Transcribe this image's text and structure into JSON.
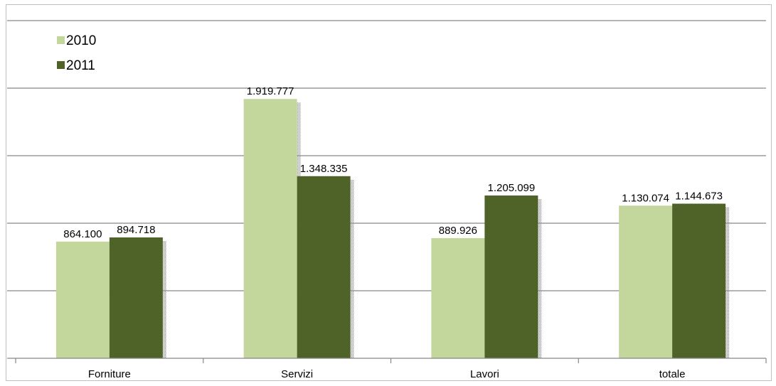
{
  "chart_data": {
    "type": "bar",
    "title": "",
    "xlabel": "",
    "ylabel": "",
    "categories": [
      "Forniture",
      "Servizi",
      "Lavori",
      "totale"
    ],
    "series": [
      {
        "name": "2010",
        "values": [
          864100,
          1919777,
          889926,
          1130074
        ],
        "labels": [
          "864.100",
          "1.919.777",
          "889.926",
          "1.130.074"
        ],
        "color": "#c3d69b"
      },
      {
        "name": "2011",
        "values": [
          894718,
          1348335,
          1205099,
          1144673
        ],
        "labels": [
          "894.718",
          "1.348.335",
          "1.205.099",
          "1.144.673"
        ],
        "color": "#4f6228"
      }
    ],
    "ylim": [
      0,
      2500000
    ],
    "ytick_step": 500000,
    "grid": true,
    "y_tick_labels_visible": false,
    "legend": {
      "placement": "top-left"
    }
  }
}
